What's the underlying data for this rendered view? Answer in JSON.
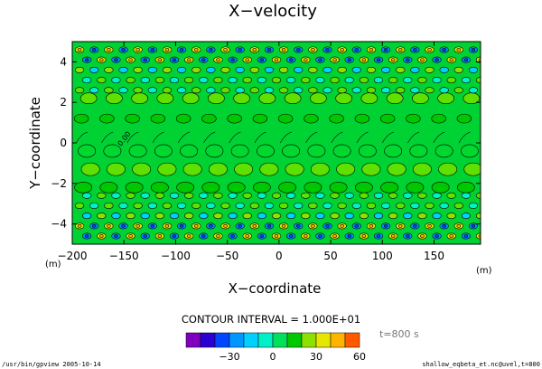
{
  "chart_data": {
    "type": "heatmap",
    "title": "X−velocity",
    "xlabel": "X−coordinate",
    "ylabel": "Y−coordinate",
    "x_unit": "(m)",
    "y_unit": "(m)",
    "xlim": [
      -200,
      195
    ],
    "ylim": [
      -5,
      5
    ],
    "x_ticks": [
      -200,
      -150,
      -100,
      -50,
      0,
      50,
      100,
      150
    ],
    "x_tick_labels": [
      "−200",
      "−150",
      "−100",
      "−50",
      "0",
      "50",
      "100",
      "150"
    ],
    "y_ticks": [
      4,
      2,
      0,
      -2,
      -4
    ],
    "y_tick_labels": [
      "4",
      "2",
      "0",
      "−2",
      "−4"
    ],
    "contour_label": "0.00",
    "contour_interval_text": "CONTOUR INTERVAL = 1.000E+01",
    "time_label": "t=800 s",
    "colorbar": {
      "levels": [
        -60,
        -50,
        -40,
        -30,
        -20,
        -10,
        0,
        10,
        20,
        30,
        40,
        50,
        60
      ],
      "colors": [
        "#7f00bf",
        "#2b00d4",
        "#0046ff",
        "#0096ff",
        "#00d0ff",
        "#00f0c8",
        "#00e05a",
        "#00c800",
        "#8ee000",
        "#e6e600",
        "#ffb400",
        "#ff5a00"
      ],
      "tick_values": [
        -30,
        0,
        30,
        60
      ],
      "tick_labels": [
        "−30",
        "0",
        "30",
        "60"
      ]
    },
    "field_note": "periodic cell pattern in x (~16 cells); near-zero green background, higher-amplitude alternating positive/negative rows near y = ±4"
  },
  "footer": {
    "left": "/usr/bin/gpview  2005-10-14",
    "right": "shallow_eqbeta_et.nc@uvel,t=800"
  },
  "colors": {
    "background": "#ffffff",
    "axis": "#000000",
    "field_base": "#00d234"
  }
}
